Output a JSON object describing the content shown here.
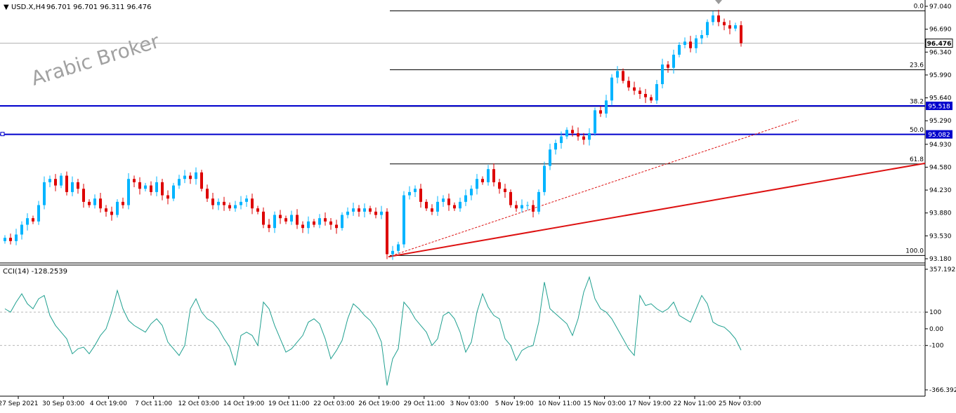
{
  "header": {
    "symbol_label": "USD.X,H4",
    "ohlc": "96.701 96.701 96.311 96.476"
  },
  "watermark": "Arabic Broker",
  "colors": {
    "bull": "#00b4ff",
    "bear": "#dd0000",
    "hline": "#0000cc",
    "trend": "#dd1111",
    "fib": "#000000",
    "cci": "#20a090"
  },
  "chart_data": [
    {
      "type": "candlestick",
      "title": "USD.X,H4",
      "ylim": [
        93.18,
        97.04
      ],
      "y_ticks": [
        "97.040",
        "96.690",
        "96.340",
        "95.990",
        "95.640",
        "95.290",
        "94.930",
        "94.580",
        "94.230",
        "93.880",
        "93.530",
        "93.180"
      ],
      "x_ticks": [
        "27 Sep 2021",
        "30 Sep 03:00",
        "4 Oct 19:00",
        "7 Oct 11:00",
        "12 Oct 03:00",
        "14 Oct 19:00",
        "19 Oct 11:00",
        "22 Oct 03:00",
        "26 Oct 19:00",
        "29 Oct 11:00",
        "3 Nov 03:00",
        "5 Nov 19:00",
        "10 Nov 11:00",
        "15 Nov 03:00",
        "17 Nov 19:00",
        "22 Nov 11:00",
        "25 Nov 03:00"
      ],
      "current_price": "96.476",
      "horizontal_levels": [
        {
          "label": "95.518",
          "value": 95.518
        },
        {
          "label": "95.082",
          "value": 95.082
        }
      ],
      "fibonacci": [
        {
          "label": "0.0",
          "value": 96.97
        },
        {
          "label": "23.6",
          "value": 96.07
        },
        {
          "label": "38.2",
          "value": 95.51
        },
        {
          "label": "50.0",
          "value": 95.08
        },
        {
          "label": "61.8",
          "value": 94.63
        },
        {
          "label": "100.0",
          "value": 93.23
        }
      ],
      "price_series": [
        93.5,
        93.45,
        93.55,
        93.7,
        93.8,
        93.75,
        94.0,
        94.35,
        94.4,
        94.3,
        94.45,
        94.2,
        94.35,
        94.25,
        94.05,
        94.0,
        94.1,
        93.95,
        93.9,
        93.85,
        94.05,
        94.0,
        94.4,
        94.35,
        94.25,
        94.3,
        94.2,
        94.35,
        94.15,
        94.1,
        94.3,
        94.4,
        94.45,
        94.4,
        94.5,
        94.25,
        94.1,
        94.0,
        94.05,
        94.0,
        93.95,
        94.0,
        94.05,
        94.1,
        93.95,
        93.9,
        93.7,
        93.65,
        93.85,
        93.8,
        93.75,
        93.85,
        93.7,
        93.65,
        93.75,
        93.7,
        93.8,
        93.75,
        93.7,
        93.65,
        93.85,
        93.9,
        93.95,
        93.9,
        93.95,
        93.9,
        93.85,
        93.9,
        93.25,
        93.3,
        93.4,
        94.15,
        94.2,
        94.25,
        94.05,
        93.95,
        93.9,
        94.05,
        94.1,
        94.0,
        93.95,
        94.05,
        94.15,
        94.25,
        94.4,
        94.35,
        94.55,
        94.35,
        94.25,
        94.2,
        94.0,
        93.95,
        94.0,
        94.0,
        93.9,
        94.2,
        94.6,
        94.85,
        94.95,
        95.05,
        95.15,
        95.1,
        95.05,
        95.0,
        95.1,
        95.45,
        95.4,
        95.6,
        95.95,
        96.05,
        95.9,
        95.8,
        95.75,
        95.7,
        95.65,
        95.6,
        95.85,
        96.15,
        96.1,
        96.3,
        96.45,
        96.5,
        96.4,
        96.55,
        96.6,
        96.8,
        96.9,
        96.8,
        96.75,
        96.7,
        96.75,
        96.476
      ],
      "trendlines": [
        {
          "name": "support",
          "from": [
            0,
            93.21
          ],
          "to": [
            165,
            95.68
          ]
        },
        {
          "name": "channel",
          "from": [
            0,
            93.21
          ],
          "to": [
            131,
            96.97
          ]
        }
      ]
    },
    {
      "type": "line",
      "title": "CCI(14) -128.2539",
      "ylim": [
        -366.3928,
        357.1925
      ],
      "y_ticks": [
        "357.1925",
        "100",
        "0.00",
        "-100",
        "-366.3928"
      ],
      "reference_levels": [
        100,
        -100
      ],
      "values": [
        120,
        100,
        160,
        210,
        150,
        120,
        180,
        200,
        80,
        20,
        -20,
        -60,
        -150,
        -120,
        -110,
        -150,
        -100,
        -40,
        0,
        100,
        230,
        120,
        50,
        20,
        0,
        -20,
        30,
        60,
        20,
        -80,
        -120,
        -160,
        -100,
        120,
        180,
        100,
        60,
        40,
        0,
        -60,
        -110,
        -220,
        -40,
        -20,
        -40,
        -100,
        160,
        120,
        20,
        -60,
        -140,
        -120,
        -80,
        -40,
        40,
        60,
        30,
        -60,
        -180,
        -130,
        -70,
        60,
        150,
        120,
        80,
        50,
        0,
        -80,
        -340,
        -180,
        -120,
        160,
        120,
        60,
        20,
        -20,
        -100,
        -60,
        80,
        100,
        60,
        -20,
        -140,
        -80,
        100,
        210,
        130,
        80,
        60,
        -60,
        -100,
        -190,
        -130,
        -110,
        -100,
        40,
        280,
        120,
        90,
        60,
        30,
        -40,
        60,
        220,
        310,
        180,
        120,
        100,
        60,
        0,
        -60,
        -120,
        -160,
        200,
        140,
        150,
        120,
        100,
        120,
        160,
        80,
        60,
        40,
        120,
        200,
        150,
        40,
        20,
        10,
        -20,
        -60,
        -128.2539
      ]
    }
  ]
}
